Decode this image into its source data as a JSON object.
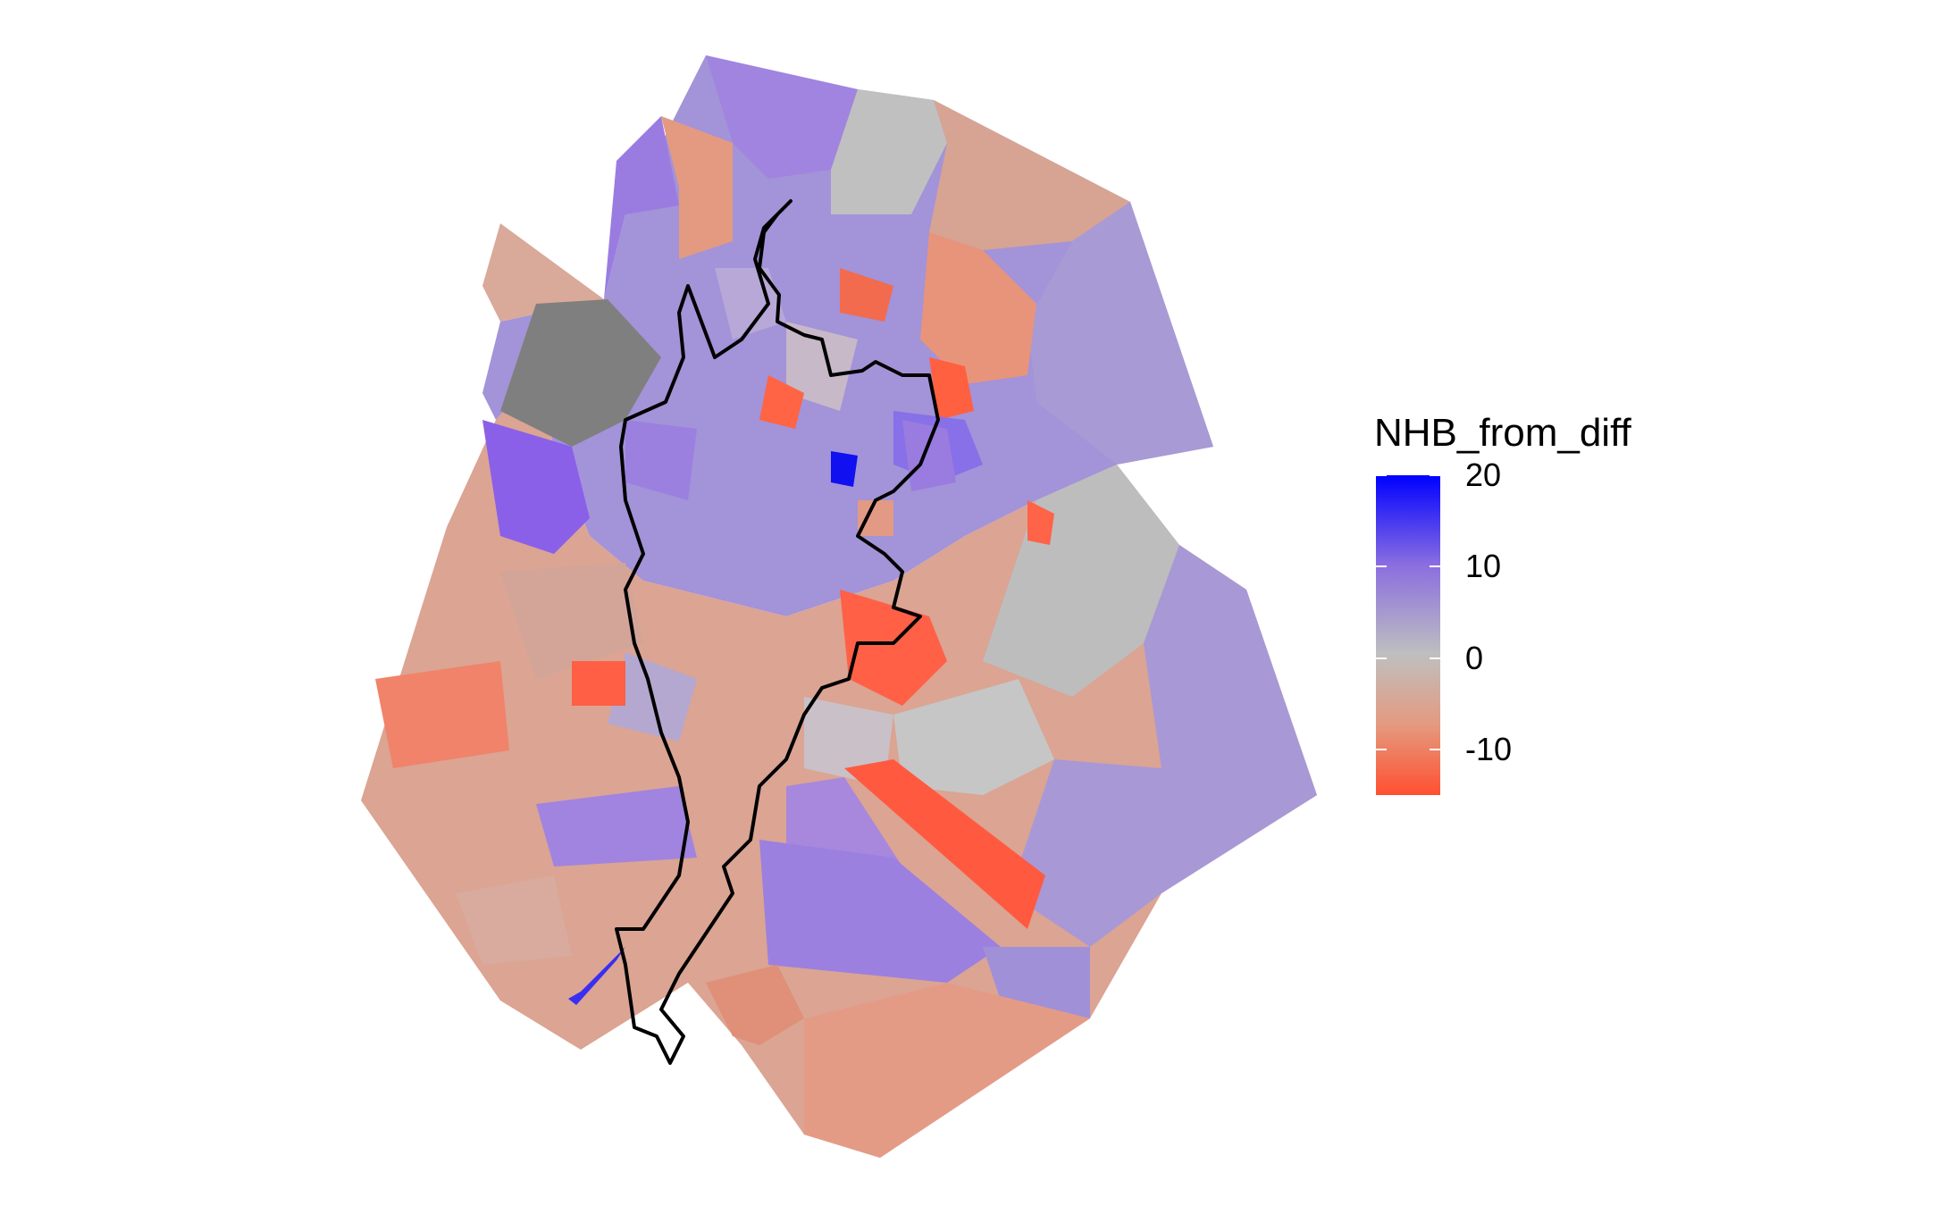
{
  "legend": {
    "title": "NHB_from_diff",
    "ticks": [
      {
        "label": "20",
        "value": 20
      },
      {
        "label": "10",
        "value": 10
      },
      {
        "label": "0",
        "value": 0
      },
      {
        "label": "-10",
        "value": -10
      }
    ],
    "range": [
      -15,
      20
    ],
    "colors": {
      "high": "#0000ff",
      "mid": "#bfbfbf",
      "low": "#ff5030",
      "missing": "#7f7f7f",
      "boundary": "#000000"
    }
  },
  "chart_data": {
    "type": "heatmap",
    "title": "",
    "fill_variable": "NHB_from_diff",
    "scale": {
      "min": -15,
      "max": 20,
      "midpoint": 0,
      "breaks": [
        -10,
        0,
        10,
        20
      ]
    }
  }
}
